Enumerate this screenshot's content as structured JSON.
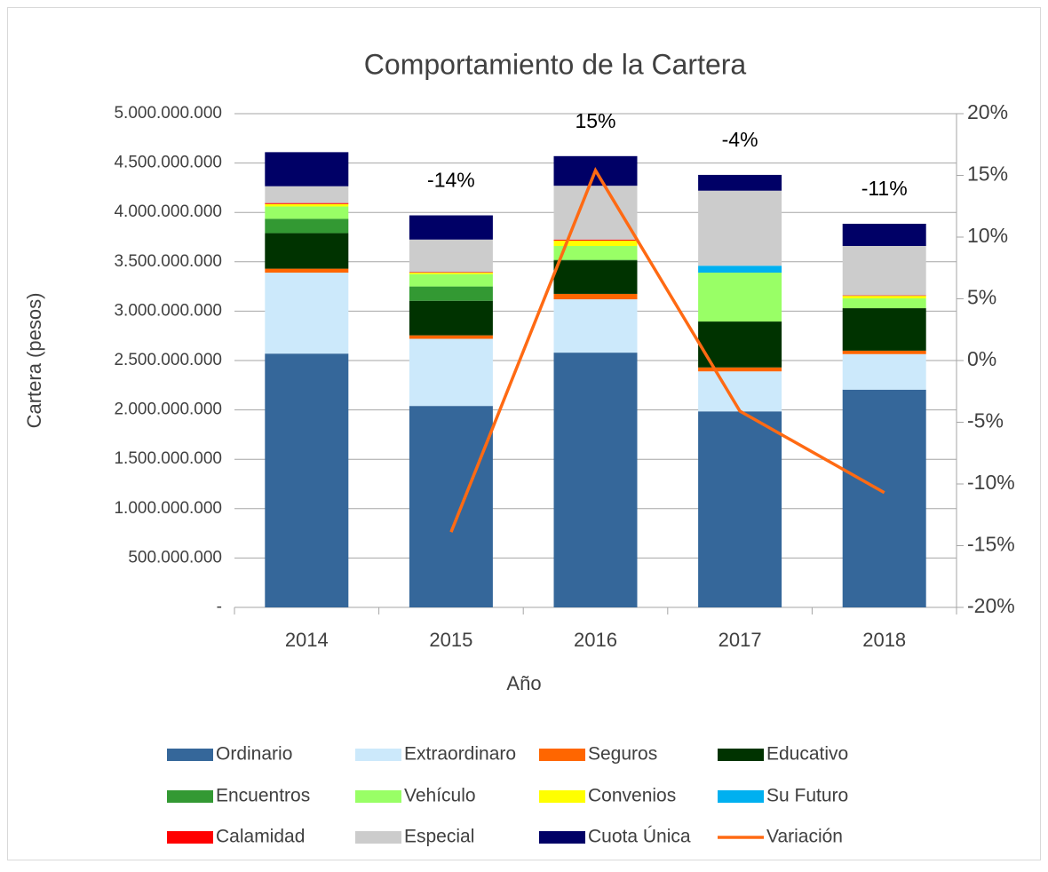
{
  "chart_data": {
    "type": "bar",
    "stacked": true,
    "title": "Comportamiento de la Cartera",
    "x_label": "Año",
    "y_label": "Cartera (pesos)",
    "categories": [
      "2014",
      "2015",
      "2016",
      "2017",
      "2018"
    ],
    "series": [
      {
        "name": "Ordinario",
        "color": "#35679a",
        "values": [
          2570000000,
          2040000000,
          2580000000,
          1985000000,
          2205000000
        ]
      },
      {
        "name": "Extraordinaro",
        "color": "#cce9fb",
        "values": [
          820000000,
          680000000,
          540000000,
          405000000,
          360000000
        ]
      },
      {
        "name": "Seguros",
        "color": "#ff6600",
        "values": [
          40000000,
          35000000,
          55000000,
          40000000,
          35000000
        ]
      },
      {
        "name": "Educativo",
        "color": "#003300",
        "values": [
          360000000,
          350000000,
          340000000,
          465000000,
          430000000
        ]
      },
      {
        "name": "Encuentros",
        "color": "#339933",
        "values": [
          145000000,
          145000000,
          5000000,
          0,
          0
        ]
      },
      {
        "name": "Vehículo",
        "color": "#99ff66",
        "values": [
          125000000,
          125000000,
          140000000,
          495000000,
          100000000
        ]
      },
      {
        "name": "Convenios",
        "color": "#ffff00",
        "values": [
          25000000,
          15000000,
          55000000,
          0,
          25000000
        ]
      },
      {
        "name": "Su Futuro",
        "color": "#00b0f0",
        "values": [
          0,
          0,
          0,
          70000000,
          0
        ]
      },
      {
        "name": "Calamidad",
        "color": "#ff0000",
        "values": [
          10000000,
          5000000,
          10000000,
          0,
          5000000
        ]
      },
      {
        "name": "Especial",
        "color": "#cccccc",
        "values": [
          170000000,
          330000000,
          545000000,
          760000000,
          500000000
        ]
      },
      {
        "name": "Cuota Única",
        "color": "#000066",
        "values": [
          345000000,
          245000000,
          300000000,
          160000000,
          225000000
        ]
      },
      {
        "name": "Variación",
        "type": "line",
        "axis": "y2",
        "color": "#ff6a13",
        "values": [
          null,
          -13.9,
          15.4,
          -4.1,
          -10.7
        ],
        "value_labels": [
          null,
          "-14%",
          "15%",
          "-4%",
          "-11%"
        ]
      }
    ],
    "ylim": [
      0,
      5000000000
    ],
    "yticks": [
      {
        "value": 0,
        "label": "-"
      },
      {
        "value": 500000000,
        "label": "500.000.000"
      },
      {
        "value": 1000000000,
        "label": "1.000.000.000"
      },
      {
        "value": 1500000000,
        "label": "1.500.000.000"
      },
      {
        "value": 2000000000,
        "label": "2.000.000.000"
      },
      {
        "value": 2500000000,
        "label": "2.500.000.000"
      },
      {
        "value": 3000000000,
        "label": "3.000.000.000"
      },
      {
        "value": 3500000000,
        "label": "3.500.000.000"
      },
      {
        "value": 4000000000,
        "label": "4.000.000.000"
      },
      {
        "value": 4500000000,
        "label": "4.500.000.000"
      },
      {
        "value": 5000000000,
        "label": "5.000.000.000"
      }
    ],
    "y2lim": [
      -20,
      20
    ],
    "y2ticks": [
      {
        "value": -20,
        "label": "-20%"
      },
      {
        "value": -15,
        "label": "-15%"
      },
      {
        "value": -10,
        "label": "-10%"
      },
      {
        "value": -5,
        "label": "-5%"
      },
      {
        "value": 0,
        "label": "0%"
      },
      {
        "value": 5,
        "label": "5%"
      },
      {
        "value": 10,
        "label": "10%"
      },
      {
        "value": 15,
        "label": "15%"
      },
      {
        "value": 20,
        "label": "20%"
      }
    ],
    "grid": true,
    "legend": "bottom"
  }
}
